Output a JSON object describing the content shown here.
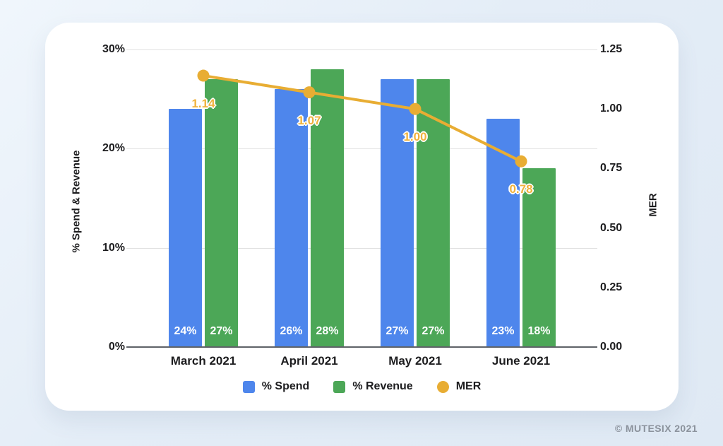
{
  "page": {
    "copyright": "© MUTESIX 2021"
  },
  "colors": {
    "spend_blue": "#4e86ec",
    "revenue_green": "#4ca757",
    "mer_gold": "#e8ad33",
    "mer_label_gold": "#f0b23c",
    "gridline": "#e2e2e2",
    "baseline": "#5f6368",
    "card_bg": "#ffffff",
    "page_bg": "#e4edf7"
  },
  "chart_data": {
    "type": "bar",
    "subtype": "combo-bar-line-dual-axis",
    "categories": [
      "March 2021",
      "April 2021",
      "May 2021",
      "June 2021"
    ],
    "series": [
      {
        "name": "% Spend",
        "type": "bar",
        "axis": "left",
        "color": "#4e86ec",
        "values": [
          24,
          26,
          27,
          23
        ],
        "value_labels": [
          "24%",
          "26%",
          "27%",
          "23%"
        ]
      },
      {
        "name": "% Revenue",
        "type": "bar",
        "axis": "left",
        "color": "#4ca757",
        "values": [
          27,
          28,
          27,
          18
        ],
        "value_labels": [
          "27%",
          "28%",
          "27%",
          "18%"
        ]
      },
      {
        "name": "MER",
        "type": "line",
        "axis": "right",
        "color": "#e8ad33",
        "values": [
          1.14,
          1.07,
          1.0,
          0.78
        ],
        "value_labels": [
          "1.14",
          "1.07",
          "1.00",
          "0.78"
        ]
      }
    ],
    "left_axis": {
      "title": "% Spend & Revenue",
      "min": 0,
      "max": 30,
      "ticks": [
        "30%",
        "20%",
        "10%",
        "0%"
      ]
    },
    "right_axis": {
      "title": "MER",
      "min": 0,
      "max": 1.25,
      "ticks": [
        "1.25",
        "1.00",
        "0.75",
        "0.50",
        "0.25",
        "0.00"
      ]
    },
    "grid": "horizontal",
    "legend": {
      "position": "bottom",
      "items": [
        {
          "label": "% Spend",
          "color": "#4e86ec",
          "shape": "square"
        },
        {
          "label": "% Revenue",
          "color": "#4ca757",
          "shape": "square"
        },
        {
          "label": "MER",
          "color": "#e8ad33",
          "shape": "circle"
        }
      ]
    }
  }
}
